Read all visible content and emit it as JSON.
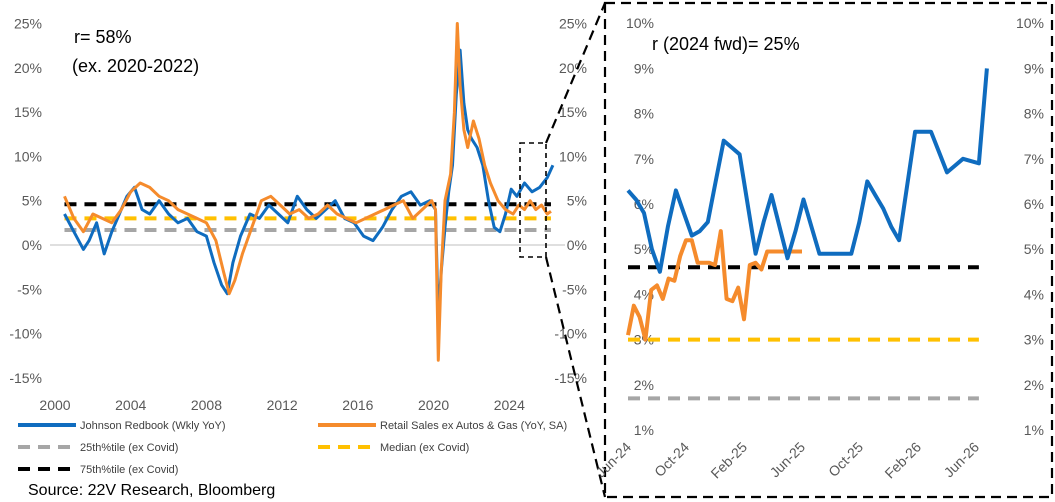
{
  "source": "Source: 22V Research, Bloomberg",
  "colors": {
    "redbook": "#0f6cbf",
    "retail": "#f58b2c",
    "p25": "#a6a6a6",
    "median": "#ffc000",
    "p75": "#000000",
    "axis": "#bfbfbf",
    "zoom_box": "#000000"
  },
  "legend": [
    {
      "label": "Johnson Redbook (Wkly YoY)",
      "color": "#0f6cbf",
      "style": "solid"
    },
    {
      "label": "Retail Sales ex Autos & Gas (YoY, SA)",
      "color": "#f58b2c",
      "style": "solid"
    },
    {
      "label": "25th%tile (ex Covid)",
      "color": "#a6a6a6",
      "style": "dashed"
    },
    {
      "label": "Median (ex Covid)",
      "color": "#ffc000",
      "style": "dashed"
    },
    {
      "label": "75th%tile (ex Covid)",
      "color": "#000000",
      "style": "dashed"
    }
  ],
  "chart_data": [
    {
      "type": "line",
      "annotation": [
        "r=  58%",
        "(ex. 2020-2022)"
      ],
      "x_ticks": [
        "2000",
        "2004",
        "2008",
        "2012",
        "2016",
        "2020",
        "2024"
      ],
      "x_range": [
        2000,
        2027
      ],
      "y_ticks_left": [
        "25%",
        "20%",
        "15%",
        "10%",
        "5%",
        "0%",
        "-5%",
        "-10%",
        "-15%"
      ],
      "y_ticks_right": [
        "25%",
        "20%",
        "15%",
        "10%",
        "5%",
        "0%",
        "-5%",
        "-10%",
        "-15%"
      ],
      "ylim": [
        -15,
        25
      ],
      "hlines": {
        "p25": 1.7,
        "median": 3.0,
        "p75": 4.6
      },
      "hlines_x_range": [
        2000.5,
        2026.2
      ],
      "series": [
        {
          "name": "Johnson Redbook (Wkly YoY)",
          "x": [
            2000.5,
            2001.0,
            2001.5,
            2001.8,
            2002.2,
            2002.6,
            2003.0,
            2003.3,
            2003.8,
            2004.2,
            2004.6,
            2005.0,
            2005.5,
            2006.0,
            2006.5,
            2007.0,
            2007.5,
            2008.0,
            2008.4,
            2008.8,
            2009.1,
            2009.4,
            2009.8,
            2010.3,
            2010.8,
            2011.3,
            2011.8,
            2012.3,
            2012.8,
            2013.3,
            2013.8,
            2014.3,
            2014.8,
            2015.3,
            2015.8,
            2016.3,
            2016.8,
            2017.3,
            2017.8,
            2018.3,
            2018.8,
            2019.3,
            2019.8,
            2020.1,
            2020.25,
            2020.4,
            2020.6,
            2020.8,
            2021.0,
            2021.2,
            2021.4,
            2021.6,
            2021.8,
            2022.0,
            2022.3,
            2022.6,
            2022.9,
            2023.2,
            2023.5,
            2023.8,
            2024.1,
            2024.4,
            2024.8,
            2025.2,
            2025.6,
            2026.0,
            2026.3
          ],
          "values": [
            3.5,
            1.5,
            -0.5,
            0.5,
            2.5,
            -1.0,
            1.5,
            3.0,
            5.5,
            6.5,
            4.0,
            3.5,
            5.0,
            3.5,
            2.5,
            3.0,
            1.5,
            1.0,
            -2.0,
            -4.5,
            -5.5,
            -2.0,
            1.0,
            3.5,
            3.0,
            4.5,
            3.5,
            2.5,
            5.5,
            4.0,
            3.0,
            4.0,
            5.0,
            3.0,
            2.5,
            1.0,
            0.5,
            2.0,
            4.0,
            5.5,
            6.0,
            4.5,
            5.0,
            4.0,
            -8.5,
            -3.0,
            2.0,
            6.0,
            9.0,
            17.0,
            22.0,
            16.0,
            13.0,
            12.0,
            11.0,
            9.0,
            5.0,
            2.0,
            1.5,
            3.5,
            6.3,
            5.5,
            7.0,
            6.0,
            6.5,
            7.6,
            9.0
          ]
        },
        {
          "name": "Retail Sales ex Autos & Gas (YoY, SA)",
          "x": [
            2000.5,
            2001.0,
            2001.5,
            2002.0,
            2002.5,
            2003.0,
            2003.5,
            2004.0,
            2004.5,
            2005.0,
            2005.5,
            2006.0,
            2006.5,
            2007.0,
            2007.5,
            2008.0,
            2008.5,
            2008.9,
            2009.2,
            2009.5,
            2009.9,
            2010.4,
            2010.9,
            2011.4,
            2011.9,
            2012.4,
            2012.9,
            2013.4,
            2013.9,
            2014.4,
            2014.9,
            2015.4,
            2015.9,
            2016.4,
            2016.9,
            2017.4,
            2017.9,
            2018.4,
            2018.9,
            2019.4,
            2019.9,
            2020.1,
            2020.25,
            2020.4,
            2020.6,
            2020.9,
            2021.1,
            2021.25,
            2021.4,
            2021.6,
            2021.8,
            2022.1,
            2022.4,
            2022.7,
            2023.0,
            2023.4,
            2023.8,
            2024.2,
            2024.5,
            2024.8,
            2025.1,
            2025.4,
            2025.7,
            2026.0,
            2026.2
          ],
          "values": [
            5.5,
            3.0,
            1.5,
            3.5,
            3.0,
            2.5,
            4.0,
            6.0,
            7.0,
            6.5,
            5.5,
            5.0,
            4.0,
            3.5,
            3.0,
            2.5,
            0.5,
            -3.0,
            -5.5,
            -4.0,
            -1.0,
            2.0,
            5.0,
            5.5,
            4.5,
            3.5,
            4.0,
            3.0,
            3.5,
            4.5,
            3.5,
            3.0,
            2.5,
            3.0,
            3.5,
            4.0,
            4.5,
            5.0,
            3.0,
            4.0,
            5.0,
            4.0,
            -13.0,
            -3.0,
            5.0,
            8.0,
            15.0,
            25.0,
            18.0,
            13.0,
            11.0,
            14.0,
            12.0,
            9.0,
            7.0,
            5.0,
            4.0,
            3.5,
            4.5,
            4.0,
            5.0,
            4.0,
            4.5,
            3.5,
            3.8
          ]
        }
      ]
    },
    {
      "type": "line",
      "annotation": [
        "r (2024 fwd)=  25%"
      ],
      "x_ticks": [
        "Jun-24",
        "Oct-24",
        "Feb-25",
        "Jun-25",
        "Oct-25",
        "Feb-26",
        "Jun-26"
      ],
      "y_ticks_left": [
        "10%",
        "9%",
        "8%",
        "7%",
        "6%",
        "5%",
        "4%",
        "3%",
        "2%",
        "1%"
      ],
      "y_ticks_right": [
        "10%",
        "9%",
        "8%",
        "7%",
        "6%",
        "5%",
        "4%",
        "3%",
        "2%",
        "1%"
      ],
      "ylim": [
        1,
        10
      ],
      "hlines": {
        "p25": 1.7,
        "median": 3.0,
        "p75": 4.6
      },
      "series": [
        {
          "name": "Johnson Redbook (Wkly YoY)",
          "x": [
            0,
            0.55,
            1.1,
            1.65,
            2.2,
            2.75,
            3.3,
            3.85,
            4.4,
            4.95,
            5.5,
            6.05,
            6.6,
            7.15,
            7.7,
            8.25,
            8.8,
            9.35,
            9.9,
            10.45,
            11.0,
            11.55,
            12.1,
            12.65,
            13.2,
            13.75,
            14.3,
            14.85,
            15.4,
            15.95,
            16.5,
            17.05,
            17.6,
            18.15,
            18.7,
            19.25,
            19.8,
            20.35,
            20.9,
            21.45,
            22.0,
            22.55,
            23.1,
            23.65,
            24.2,
            24.75
          ],
          "values": [
            6.3,
            6.1,
            5.8,
            5.0,
            4.5,
            5.5,
            6.3,
            5.8,
            5.3,
            5.4,
            5.6,
            6.5,
            7.4,
            7.25,
            7.1,
            6.0,
            4.9,
            5.6,
            6.2,
            5.5,
            4.8,
            5.4,
            6.1,
            5.5,
            4.9,
            4.9,
            4.9,
            4.9,
            4.9,
            5.6,
            6.5,
            6.2,
            5.9,
            5.5,
            5.2,
            6.4,
            7.6,
            7.6,
            7.6,
            7.15,
            6.7,
            6.85,
            7.0,
            6.95,
            6.9,
            9.0
          ]
        },
        {
          "name": "Retail Sales ex Autos & Gas (YoY, SA)",
          "x": [
            0,
            0.4,
            0.8,
            1.2,
            1.6,
            2.0,
            2.4,
            2.8,
            3.2,
            3.6,
            4.0,
            4.4,
            4.8,
            5.2,
            5.6,
            6.0,
            6.4,
            6.8,
            7.2,
            7.6,
            8.0,
            8.4,
            8.8,
            9.2,
            9.6,
            10.0,
            10.4,
            10.8,
            11.2,
            11.6,
            12.0
          ],
          "values": [
            3.1,
            3.75,
            3.5,
            3.0,
            4.1,
            4.2,
            3.9,
            4.35,
            4.3,
            4.85,
            5.2,
            5.2,
            4.7,
            4.7,
            4.7,
            4.65,
            5.4,
            3.9,
            3.85,
            4.15,
            3.45,
            4.65,
            4.7,
            4.55,
            4.95,
            4.95,
            4.95,
            4.95,
            4.95,
            4.95,
            4.95
          ]
        }
      ]
    }
  ]
}
